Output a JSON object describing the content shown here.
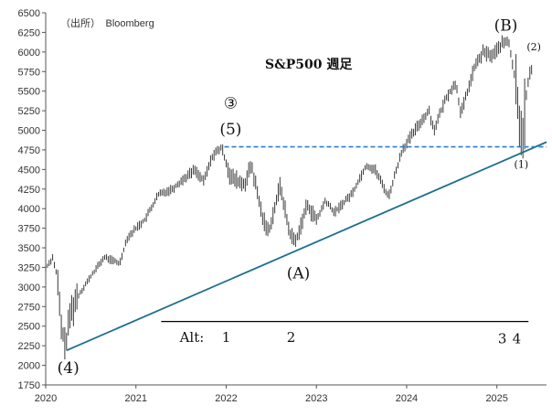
{
  "chart_data": {
    "type": "candlestick",
    "source": "（出所）　Bloomberg",
    "title": "S&P500 週足",
    "ylim": [
      1750,
      6500
    ],
    "yticks": [
      1750,
      2000,
      2250,
      2500,
      2750,
      3000,
      3250,
      3500,
      3750,
      4000,
      4250,
      4500,
      4750,
      5000,
      5250,
      5500,
      5750,
      6000,
      6250,
      6500
    ],
    "xlim": [
      2020.0,
      2025.55
    ],
    "xticks": [
      "2020",
      "2021",
      "2022",
      "2023",
      "2024",
      "2025"
    ],
    "price_path": [
      {
        "t": 2020.0,
        "v": 3240
      },
      {
        "t": 2020.08,
        "v": 3380
      },
      {
        "t": 2020.13,
        "v": 3100
      },
      {
        "t": 2020.17,
        "v": 2500
      },
      {
        "t": 2020.22,
        "v": 2240
      },
      {
        "t": 2020.27,
        "v": 2650
      },
      {
        "t": 2020.35,
        "v": 2870
      },
      {
        "t": 2020.45,
        "v": 3050
      },
      {
        "t": 2020.55,
        "v": 3220
      },
      {
        "t": 2020.65,
        "v": 3380
      },
      {
        "t": 2020.72,
        "v": 3350
      },
      {
        "t": 2020.82,
        "v": 3300
      },
      {
        "t": 2020.9,
        "v": 3620
      },
      {
        "t": 2021.0,
        "v": 3750
      },
      {
        "t": 2021.1,
        "v": 3860
      },
      {
        "t": 2021.25,
        "v": 4180
      },
      {
        "t": 2021.4,
        "v": 4250
      },
      {
        "t": 2021.55,
        "v": 4400
      },
      {
        "t": 2021.65,
        "v": 4500
      },
      {
        "t": 2021.75,
        "v": 4350
      },
      {
        "t": 2021.85,
        "v": 4680
      },
      {
        "t": 2021.95,
        "v": 4780
      },
      {
        "t": 2022.05,
        "v": 4400
      },
      {
        "t": 2022.2,
        "v": 4300
      },
      {
        "t": 2022.28,
        "v": 4550
      },
      {
        "t": 2022.4,
        "v": 3900
      },
      {
        "t": 2022.47,
        "v": 3700
      },
      {
        "t": 2022.6,
        "v": 4300
      },
      {
        "t": 2022.7,
        "v": 3700
      },
      {
        "t": 2022.77,
        "v": 3580
      },
      {
        "t": 2022.9,
        "v": 4050
      },
      {
        "t": 2023.0,
        "v": 3850
      },
      {
        "t": 2023.1,
        "v": 4100
      },
      {
        "t": 2023.2,
        "v": 3950
      },
      {
        "t": 2023.4,
        "v": 4200
      },
      {
        "t": 2023.55,
        "v": 4550
      },
      {
        "t": 2023.65,
        "v": 4500
      },
      {
        "t": 2023.8,
        "v": 4150
      },
      {
        "t": 2023.95,
        "v": 4750
      },
      {
        "t": 2024.15,
        "v": 5100
      },
      {
        "t": 2024.25,
        "v": 5250
      },
      {
        "t": 2024.3,
        "v": 5000
      },
      {
        "t": 2024.45,
        "v": 5450
      },
      {
        "t": 2024.55,
        "v": 5600
      },
      {
        "t": 2024.6,
        "v": 5200
      },
      {
        "t": 2024.75,
        "v": 5800
      },
      {
        "t": 2024.85,
        "v": 6000
      },
      {
        "t": 2024.95,
        "v": 5950
      },
      {
        "t": 2025.05,
        "v": 6100
      },
      {
        "t": 2025.13,
        "v": 6140
      },
      {
        "t": 2025.18,
        "v": 5800
      },
      {
        "t": 2025.22,
        "v": 5500
      },
      {
        "t": 2025.26,
        "v": 5000
      },
      {
        "t": 2025.29,
        "v": 4980
      },
      {
        "t": 2025.32,
        "v": 5400
      },
      {
        "t": 2025.36,
        "v": 5700
      },
      {
        "t": 2025.39,
        "v": 5800
      }
    ],
    "trendline": {
      "from": {
        "t": 2020.23,
        "v": 2190
      },
      "to": {
        "t": 2025.55,
        "v": 4850
      }
    },
    "resistance": {
      "value": 4790,
      "from_t": 2021.98,
      "to_t": 2025.55
    },
    "alt_line": {
      "value": 2560,
      "from_t": 2021.28,
      "to_t": 2025.35
    },
    "wave_labels": [
      {
        "text": "③",
        "t": 2022.05,
        "v": 5280
      },
      {
        "text": "(5)",
        "t": 2022.05,
        "v": 4950
      },
      {
        "text": "(A)",
        "t": 2022.8,
        "v": 3110
      },
      {
        "text": "(B)",
        "t": 2025.1,
        "v": 6270
      },
      {
        "text": "(2)",
        "t": 2025.41,
        "v": 6020
      },
      {
        "text": "(1)",
        "t": 2025.27,
        "v": 4520
      },
      {
        "text": "(4)",
        "t": 2020.25,
        "v": 1900
      }
    ],
    "alt_labels": [
      {
        "text": "Alt:",
        "t": 2021.62,
        "v": 2300
      },
      {
        "text": "1",
        "t": 2022.0,
        "v": 2300
      },
      {
        "text": "2",
        "t": 2022.72,
        "v": 2300
      },
      {
        "text": "3",
        "t": 2025.06,
        "v": 2280
      },
      {
        "text": "4",
        "t": 2025.22,
        "v": 2280
      }
    ],
    "colors": {
      "bars": "#3a3a3a",
      "trend": "#1e6f8f",
      "resistance": "#2e7fc8",
      "alt": "#000000"
    }
  }
}
